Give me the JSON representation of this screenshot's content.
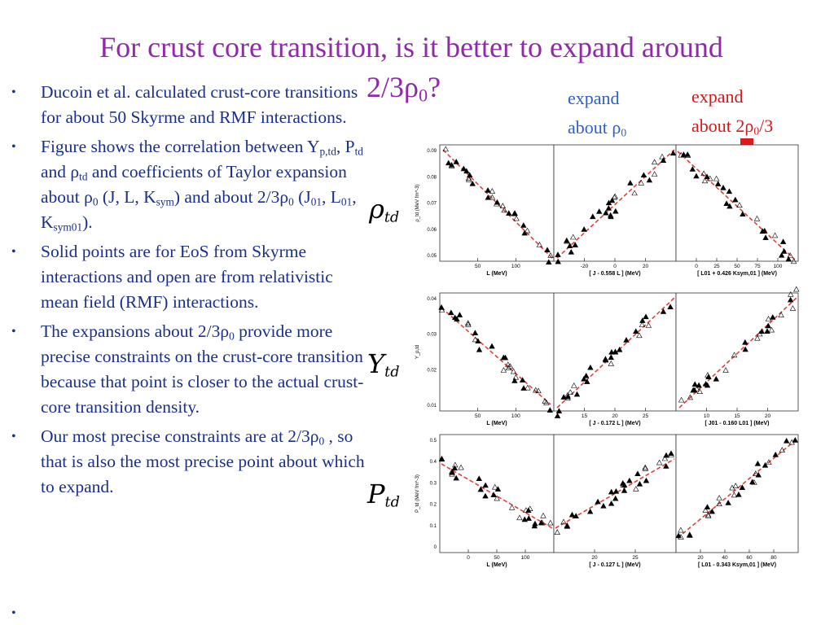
{
  "title": {
    "line1": "For crust core transition, is it better to expand around",
    "line2_prefix": "2/3ρ",
    "line2_sub": "0",
    "line2_suffix": "?"
  },
  "labels": {
    "expand_blue_1": "expand",
    "expand_blue_2_prefix": "about ρ",
    "expand_blue_2_sub": "0",
    "expand_red_1": "expand",
    "expand_red_2_prefix": "about 2ρ",
    "expand_red_2_sub": "0",
    "expand_red_2_suffix": "/3"
  },
  "row_labels": [
    {
      "main": "ρ",
      "sub": "td"
    },
    {
      "main": "Y",
      "sub": "td"
    },
    {
      "main": "P",
      "sub": "td"
    }
  ],
  "bullets": {
    "b1": "Ducoin et al. calculated crust-core transitions for about 50 Skyrme and RMF interactions.",
    "b2_a": "Figure shows the correlation between Y",
    "b2_sub1": "p,td",
    "b2_b": ", P",
    "b2_sub2": "td",
    "b2_c": " and ρ",
    "b2_sub3": "td",
    "b2_d": "  and coefficients of Taylor expansion about ρ",
    "b2_sub4": "0",
    "b2_e": " (J, L, K",
    "b2_sub5": "sym",
    "b2_f": ") and about 2/3ρ",
    "b2_sub6": "0",
    "b2_g": " (J",
    "b2_sub7": "01",
    "b2_h": ", L",
    "b2_sub8": "01",
    "b2_i": ", K",
    "b2_sub9": "sym01",
    "b2_j": ").",
    "b3": "Solid points are for EoS from Skyrme interactions and open are from relativistic mean field (RMF) interactions.",
    "b4_a": "The expansions about 2/3ρ",
    "b4_sub": "0",
    "b4_b": "  provide more precise constraints on the crust-core transition because that point is closer to the actual crust-core transition density.",
    "b5_a": "Our most precise constraints are at 2/3ρ",
    "b5_sub": "0",
    "b5_b": " , so that is also the most precise point about which to expand.",
    "bullet_char": "•"
  },
  "figure": {
    "rows": [
      {
        "ylabel": "ρ_td (MeV fm^-3)",
        "yticks": [
          "0.09",
          "0.08",
          "0.07",
          "0.06",
          "0.05"
        ],
        "xlabels": [
          "L (MeV)",
          "[ J - 0.558 L ] (MeV)",
          "[ L01 + 0.426 Ksym,01 ] (MeV)"
        ],
        "xticks": [
          [
            "50",
            "100"
          ],
          [
            "-20",
            "0",
            "20"
          ],
          [
            "0",
            "25",
            "50",
            "75",
            "100"
          ]
        ]
      },
      {
        "ylabel": "Y_p,td",
        "yticks": [
          "0.04",
          "0.03",
          "0.02",
          "0.01"
        ],
        "xlabels": [
          "L (MeV)",
          "[ J - 0.172 L ] (MeV)",
          "[ J01 - 0.160 L01 ] (MeV)"
        ],
        "xticks": [
          [
            "50",
            "100"
          ],
          [
            "15",
            "20",
            "25"
          ],
          [
            "10",
            "15",
            "20"
          ]
        ]
      },
      {
        "ylabel": "P_td (MeV fm^-3)",
        "yticks": [
          "0.5",
          "0.4",
          "0.3",
          "0.2",
          "0.1",
          "0"
        ],
        "xlabels": [
          "L (MeV)",
          "[ J - 0.127 L ] (MeV)",
          "[ L01 - 0.343 Ksym,01 ] (MeV)"
        ],
        "xticks": [
          [
            "0",
            "50",
            "100"
          ],
          [
            "20",
            "25"
          ],
          [
            "20",
            "40",
            "60",
            "80"
          ]
        ]
      }
    ],
    "colors": {
      "fit": "#e0403a",
      "arrow_blue": "#2f6fe0",
      "arrow_red": "#e01a1a"
    }
  }
}
